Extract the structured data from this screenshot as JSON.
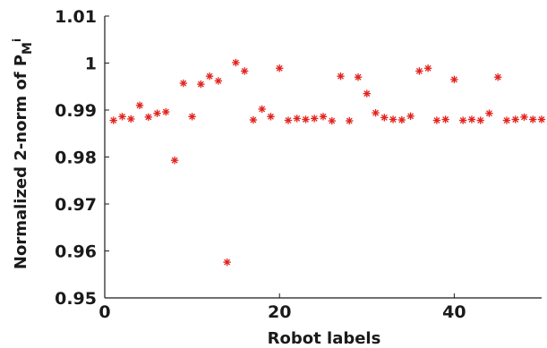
{
  "chart_data": {
    "type": "scatter",
    "title": "",
    "xlabel": "Robot labels",
    "ylabel_main": "Normalized 2-norm of P",
    "ylabel_sub": "M",
    "ylabel_sup": "i",
    "xlim": [
      0,
      50
    ],
    "ylim": [
      0.95,
      1.01
    ],
    "xticks": [
      0,
      20,
      40
    ],
    "xtick_labels": [
      "0",
      "20",
      "40"
    ],
    "yticks": [
      0.95,
      0.96,
      0.97,
      0.98,
      0.99,
      1.0,
      1.01
    ],
    "ytick_labels": [
      "0.95",
      "0.96",
      "0.97",
      "0.98",
      "0.99",
      "1",
      "1.01"
    ],
    "grid": false,
    "marker": "asterisk",
    "marker_color": "#e3221d",
    "series": [
      {
        "x": [
          1,
          2,
          3,
          4,
          5,
          6,
          7,
          8,
          9,
          10,
          11,
          12,
          13,
          14,
          15,
          16,
          17,
          18,
          19,
          20,
          21,
          22,
          23,
          24,
          25,
          26,
          27,
          28,
          29,
          30,
          31,
          32,
          33,
          34,
          35,
          36,
          37,
          38,
          39,
          40,
          41,
          42,
          43,
          44,
          45,
          46,
          47,
          48,
          49,
          50
        ],
        "y": [
          0.9878,
          0.9886,
          0.9881,
          0.991,
          0.9885,
          0.9893,
          0.9896,
          0.9793,
          0.9957,
          0.9886,
          0.9955,
          0.9972,
          0.9962,
          0.9576,
          1.0001,
          0.9983,
          0.9879,
          0.9902,
          0.9886,
          0.9989,
          0.9878,
          0.9882,
          0.988,
          0.9882,
          0.9886,
          0.9877,
          0.9972,
          0.9877,
          0.997,
          0.9935,
          0.9894,
          0.9884,
          0.988,
          0.9879,
          0.9887,
          0.9983,
          0.9989,
          0.9878,
          0.988,
          0.9965,
          0.9878,
          0.988,
          0.9878,
          0.9893,
          0.997,
          0.9878,
          0.988,
          0.9885,
          0.988,
          0.988
        ]
      }
    ]
  }
}
